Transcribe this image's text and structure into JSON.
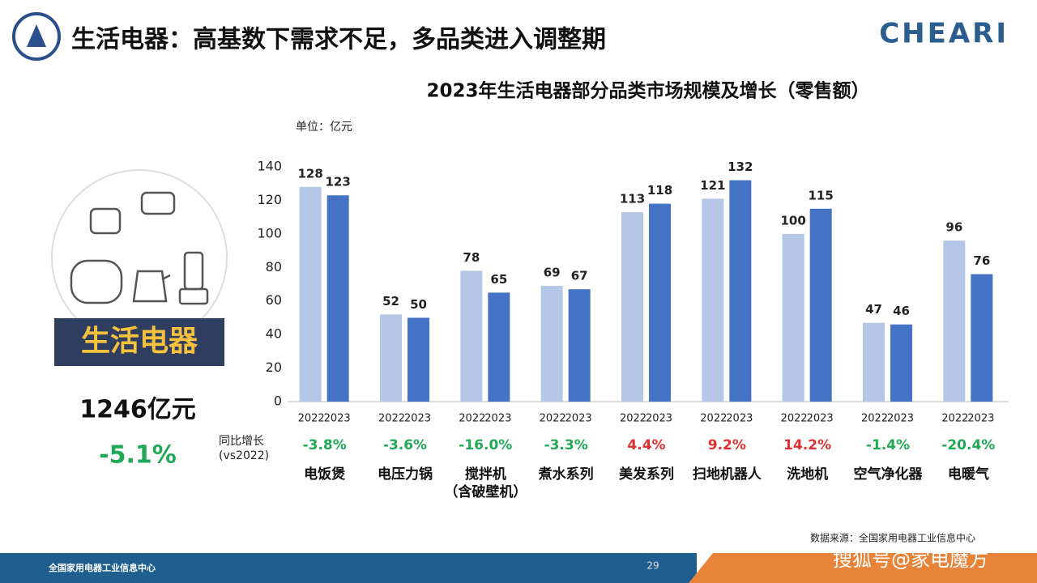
{
  "header": {
    "title": "生活电器：高基数下需求不足，多品类进入调整期",
    "logo": "CHEARI"
  },
  "side_panel": {
    "label": "生活电器",
    "total": "1246亿元",
    "growth": "-5.1%"
  },
  "chart_data": {
    "type": "bar",
    "title": "2023年生活电器部分品类市场规模及增长（零售额）",
    "unit": "单位：亿元",
    "categories": [
      "电饭煲",
      "电压力锅",
      "搅拌机\n（含破壁机）",
      "煮水系列",
      "美发系列",
      "扫地机器人",
      "洗地机",
      "空气净化器",
      "电暖气"
    ],
    "series": [
      {
        "name": "2022",
        "color": "#b4c7e7",
        "values": [
          128,
          52,
          78,
          69,
          113,
          121,
          100,
          47,
          96
        ]
      },
      {
        "name": "2023",
        "color": "#4472c4",
        "values": [
          123,
          50,
          65,
          67,
          118,
          132,
          115,
          46,
          76
        ]
      }
    ],
    "ylim": [
      0,
      140
    ],
    "yticks": [
      0,
      20,
      40,
      60,
      80,
      100,
      120,
      140
    ],
    "growth_label": "同比增长\n(vs2022)",
    "growth": [
      -3.8,
      -3.6,
      -16.0,
      -3.3,
      4.4,
      9.2,
      14.2,
      -1.4,
      -20.4
    ],
    "growth_labels": [
      "-3.8%",
      "-3.6%",
      "-16.0%",
      "-3.3%",
      "4.4%",
      "9.2%",
      "14.2%",
      "-1.4%",
      "-20.4%"
    ],
    "growth_colors": {
      "negative": "#1fa855",
      "positive": "#e02f2f"
    }
  },
  "source": "数据来源：全国家用电器工业信息中心",
  "footer": {
    "org": "全国家用电器工业信息中心",
    "page": "29",
    "watermark": "搜狐号@家电魔方"
  }
}
